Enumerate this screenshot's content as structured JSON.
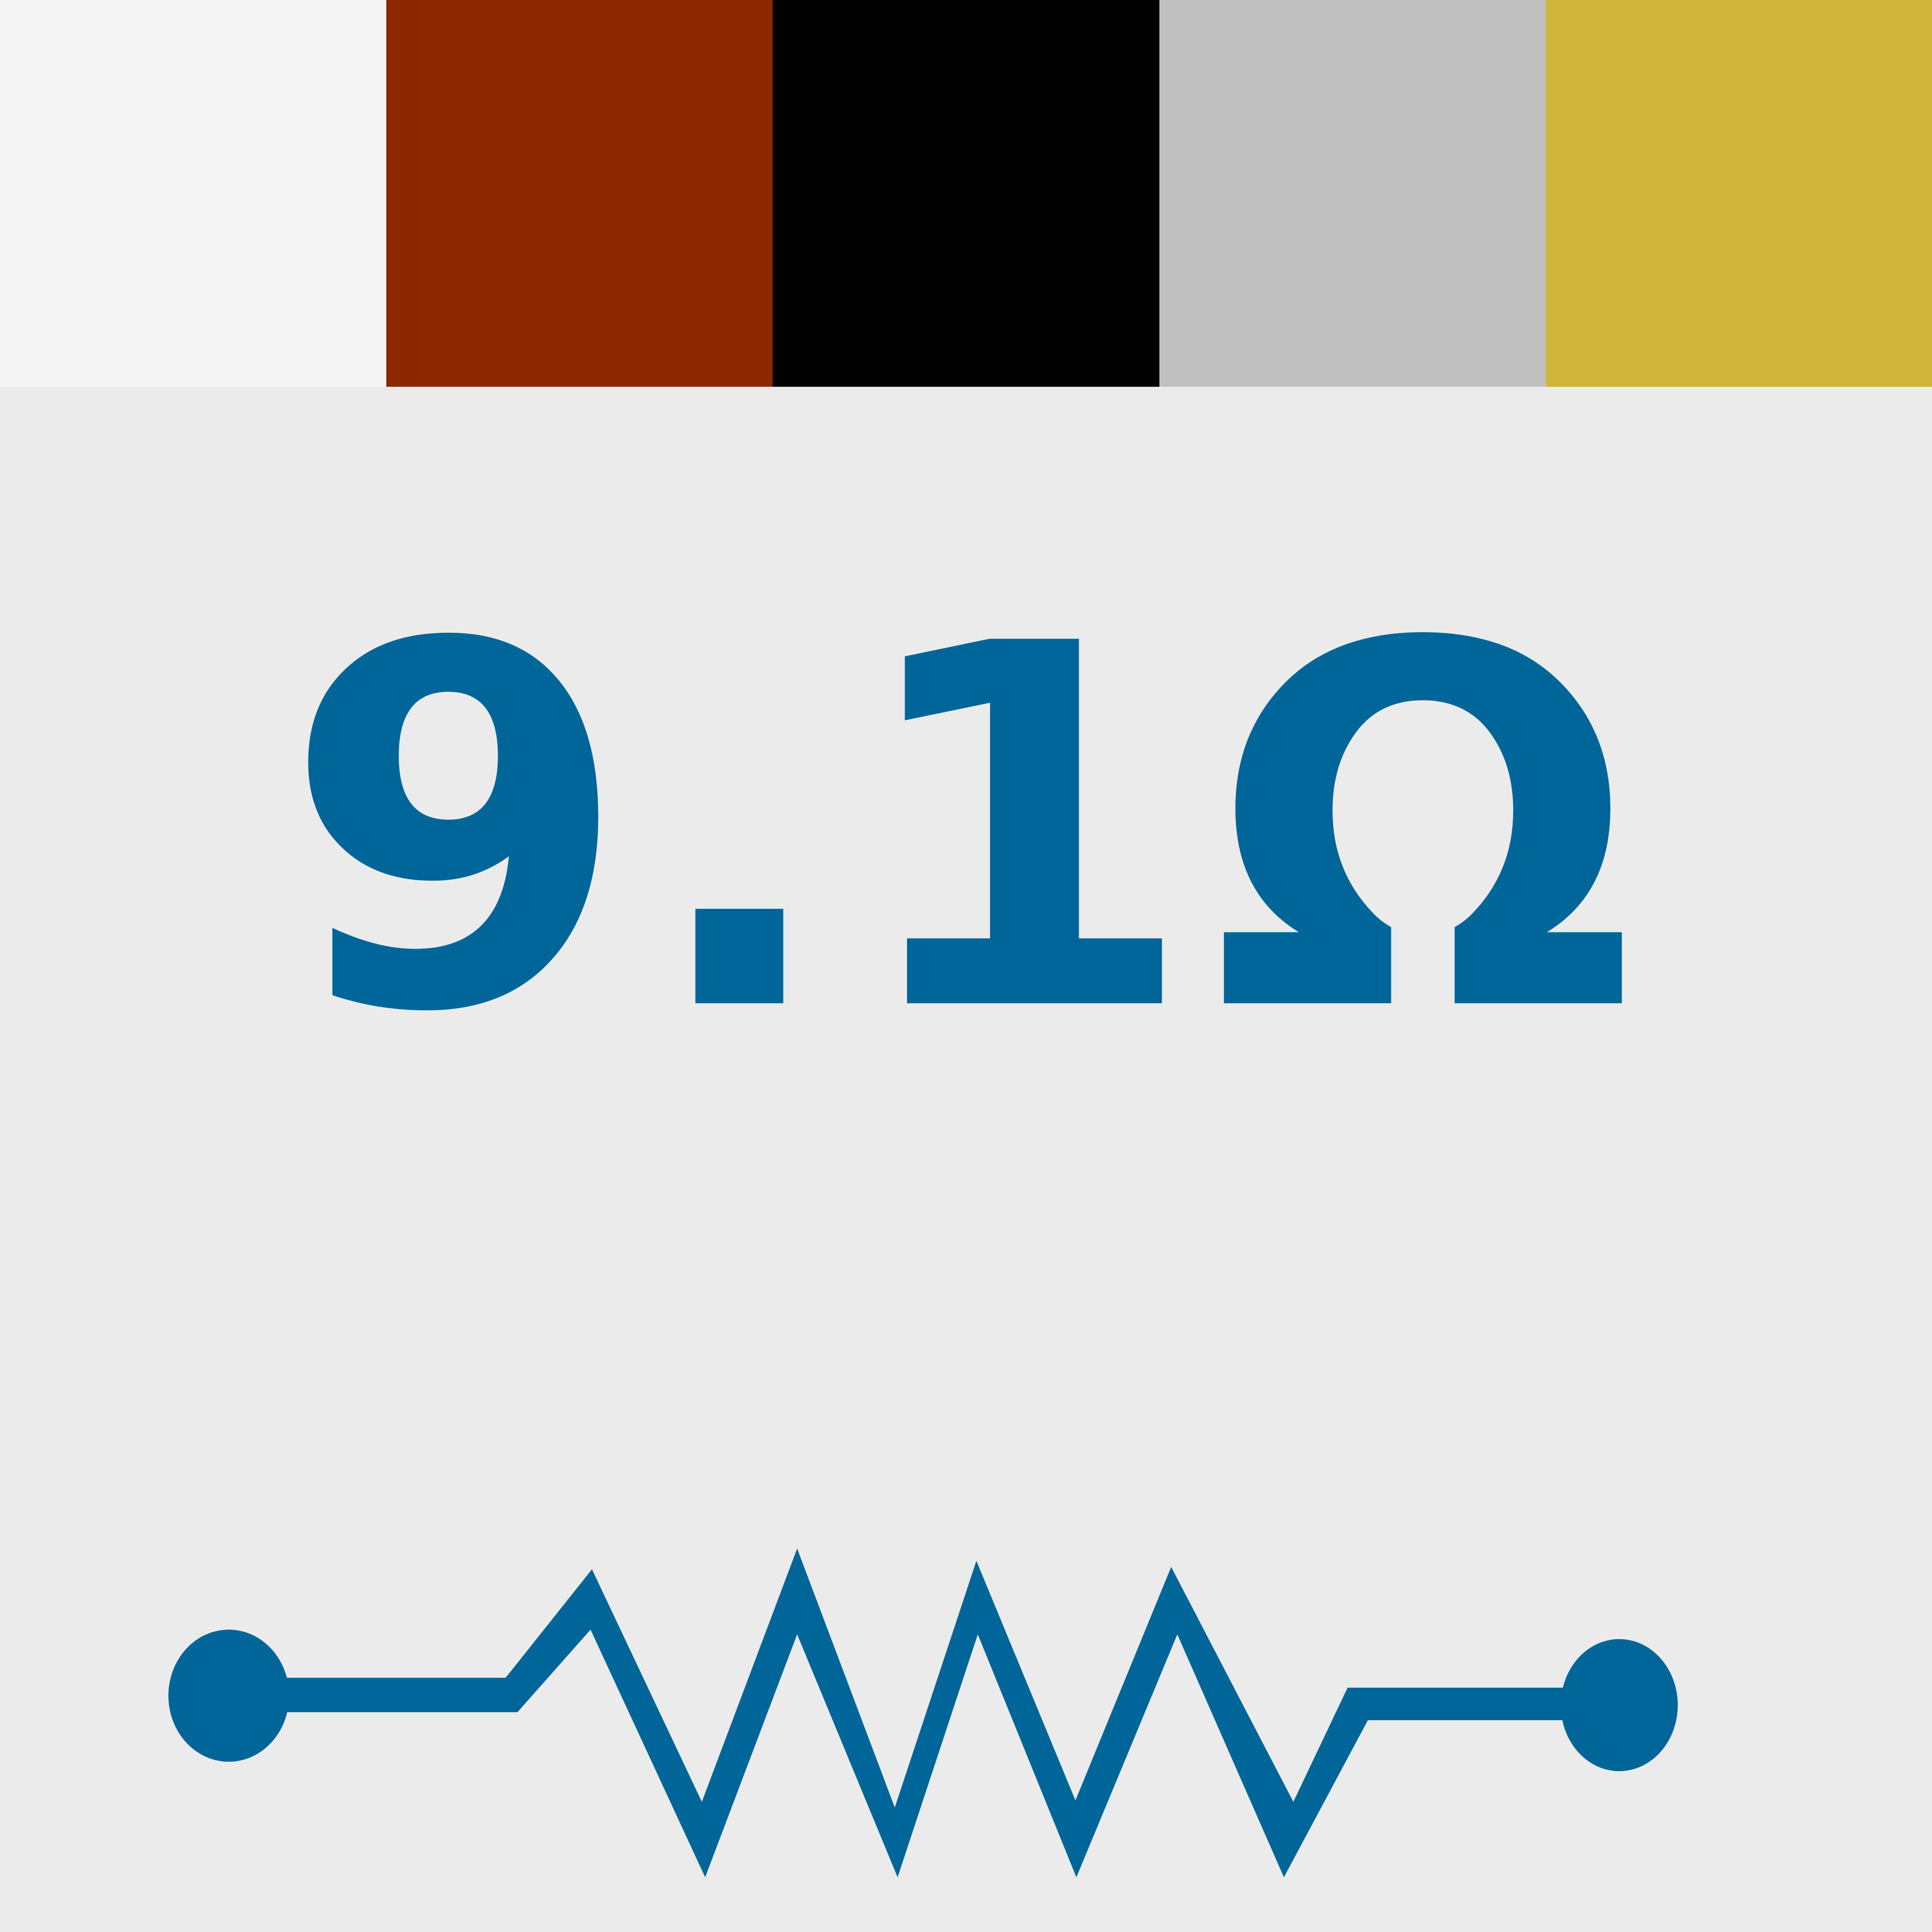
{
  "resistor": {
    "value_label": "9.1Ω",
    "accent_color": "#006699",
    "background_color": "#ebebeb",
    "bands": [
      {
        "name": "white",
        "color": "#f5f5f5"
      },
      {
        "name": "brown",
        "color": "#8b2800"
      },
      {
        "name": "black",
        "color": "#000000"
      },
      {
        "name": "silver",
        "color": "#c0c0c0"
      },
      {
        "name": "gold",
        "color": "#cfb53b"
      }
    ],
    "symbol_icon": "resistor-symbol-icon"
  }
}
